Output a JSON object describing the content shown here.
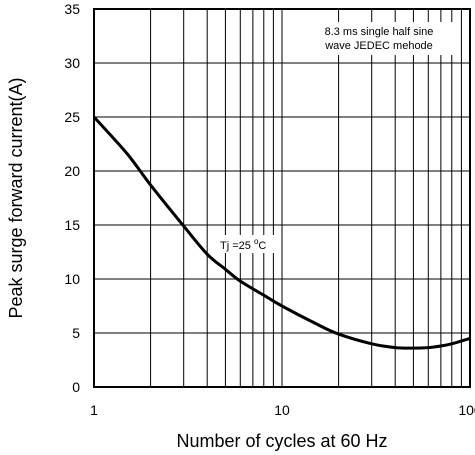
{
  "chart_data": {
    "type": "line",
    "xlabel": "Number of cycles at 60 Hz",
    "ylabel": "Peak surge forward current(A)",
    "x_scale": "log",
    "xlim": [
      1,
      100
    ],
    "ylim": [
      0,
      35
    ],
    "x_ticks": [
      "1",
      "10",
      "100"
    ],
    "y_ticks": [
      "0",
      "5",
      "10",
      "15",
      "20",
      "25",
      "30",
      "35"
    ],
    "grid": true,
    "series": [
      {
        "x": [
          1,
          1.5,
          2,
          3,
          4,
          5,
          6,
          8,
          10,
          15,
          20,
          30,
          40,
          50,
          60,
          70,
          80,
          100
        ],
        "y": [
          25,
          21.6,
          18.7,
          14.9,
          12.3,
          10.9,
          9.8,
          8.5,
          7.5,
          5.9,
          4.9,
          4.0,
          3.65,
          3.6,
          3.65,
          3.8,
          4.0,
          4.5
        ]
      }
    ],
    "note_lines": [
      "8.3 ms single half sine",
      "wave JEDEC mehode"
    ],
    "annotation": {
      "text": "Tj =25 ",
      "sup": "o",
      "suffix": "C",
      "x": 4.6,
      "y": 12.5
    }
  }
}
